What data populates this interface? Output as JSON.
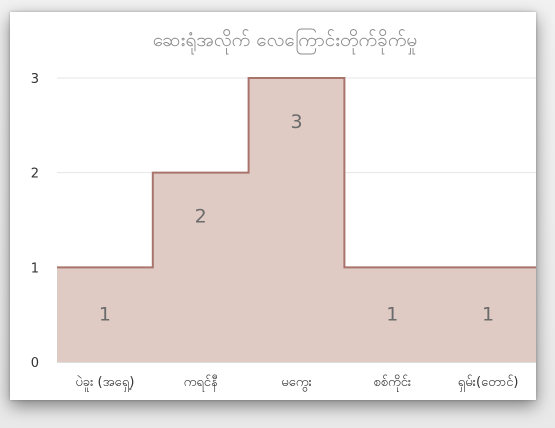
{
  "chart_data": {
    "type": "area",
    "step": true,
    "title": "ဆေးရုံအလိုက် လေကြောင်းတိုက်ခိုက်မှု",
    "categories": [
      "ပဲခူး (အရှေ့)",
      "ကရင်နီ",
      "မကွေး",
      "စစ်ကိုင်း",
      "ရှမ်း(တောင်)"
    ],
    "values": [
      1,
      2,
      3,
      1,
      1
    ],
    "ylim": [
      0,
      3
    ],
    "yticks": [
      "0",
      "1",
      "2",
      "3"
    ],
    "data_labels": [
      "1",
      "2",
      "3",
      "1",
      "1"
    ],
    "grid": true,
    "legend": "none",
    "colors": {
      "fill": "#dfcbc4",
      "line": "#a8746c",
      "grid": "#e6e6e6",
      "axis": "#bdbdbd"
    }
  }
}
